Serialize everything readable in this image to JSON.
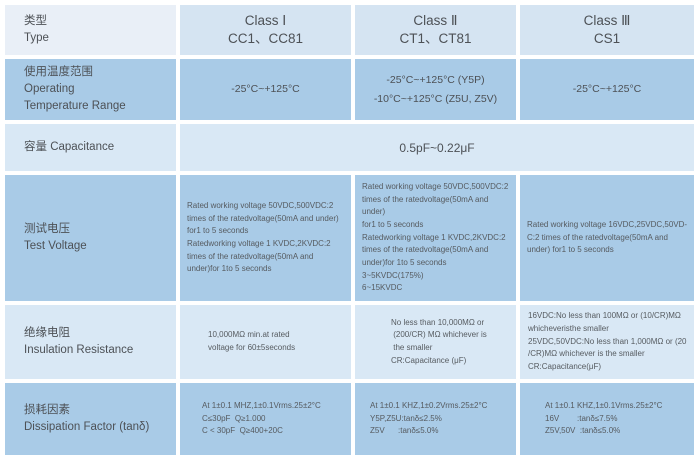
{
  "header": {
    "type_label": "类型\nType",
    "class1": "Class Ⅰ\nCC1、CC81",
    "class2": "Class Ⅱ\nCT1、CT81",
    "class3": "Class Ⅲ\nCS1"
  },
  "rows": {
    "operating": {
      "label": "使用温度范围\nOperating\nTemperature Range",
      "class1": "-25°C~+125°C",
      "class2": "-25°C~+125°C (Y5P)\n-10°C~+125°C (Z5U, Z5V)",
      "class3": "-25°C~+125°C"
    },
    "capacitance": {
      "label": "容量 Capacitance",
      "value": "0.5pF~0.22μF"
    },
    "test_voltage": {
      "label": "测试电压\nTest Voltage",
      "class1": "Rated working voltage 50VDC,500VDC:2\ntimes of the ratedvoltage(50mA and under)\nfor1 to 5 seconds\nRatedworking voltage 1 KVDC,2KVDC:2\ntimes of the ratedvoltage(50mA and\nunder)for 1to 5 seconds",
      "class2": "Rated working voltage 50VDC,500VDC:2\ntimes of the ratedvoltage(50mA and under)\nfor1 to 5 seconds\nRatedworking voltage 1 KVDC,2KVDC:2\ntimes of the ratedvoltage(50mA and\nunder)for 1to 5 seconds\n3~5KVDC(175%)\n6~15KVDC",
      "class3": "Rated working voltage 16VDC,25VDC,50VD-\nC:2 times of the ratedvoltage(50mA and\nunder) for1 to 5 seconds"
    },
    "insulation": {
      "label": "绝缘电阻\nInsulation Resistance",
      "class1": "10,000MΩ min.at rated\nvoltage for 60±5seconds",
      "class2": "No less than 10,000MΩ or\n (200/CR) MΩ whichever is\n the smaller\nCR:Capacitance (μF)",
      "class3": "16VDC:No less than 100MΩ or (10/CR)MΩ\nwhicheveristhe smaller\n25VDC,50VDC:No less than 1,000MΩ or (20\n/CR)MΩ whichever is the smaller\nCR:Capacitance(μF)"
    },
    "dissipation": {
      "label": "损耗因素\nDissipation Factor (tanδ)",
      "class1": "At 1±0.1 MHZ,1±0.1Vrms.25±2°C\nC≤30pF  Q≥1.000\nC < 30pF  Q≥400+20C",
      "class2": "At 1±0.1 KHZ,1±0.2Vrms.25±2°C\nY5P,Z5U:tanδ≤2.5%\nZ5V      :tanδ≤5.0%",
      "class3": "At 1±0.1 KHZ,1±0.1Vrms.25±2°C\n16V        :tanδ≤7.5%\nZ5V,50V  :tanδ≤5.0%"
    }
  },
  "colors": {
    "header_label_bg": "#e9eff7",
    "header_class_bg": "#d5e4f2",
    "row_light_bg": "#d9e8f5",
    "row_medium_bg": "#a9cbe7",
    "gap": "#ffffff",
    "text": "#4d5156"
  }
}
